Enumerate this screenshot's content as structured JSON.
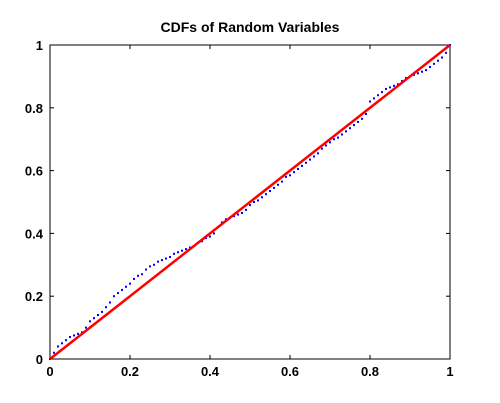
{
  "chart_data": {
    "type": "line",
    "title": "CDFs of Random Variables",
    "xlabel": "",
    "ylabel": "",
    "xlim": [
      0,
      1
    ],
    "ylim": [
      0,
      1
    ],
    "xticks": [
      "0",
      "0.2",
      "0.4",
      "0.6",
      "0.8",
      "1"
    ],
    "yticks": [
      "0",
      "0.2",
      "0.4",
      "0.6",
      "0.8",
      "1"
    ],
    "grid": false,
    "legend": "none",
    "series": [
      {
        "style": "dotted",
        "color": "#0000ff",
        "x": [
          0.0,
          0.01,
          0.02,
          0.03,
          0.04,
          0.05,
          0.06,
          0.07,
          0.08,
          0.09,
          0.1,
          0.11,
          0.12,
          0.13,
          0.14,
          0.15,
          0.16,
          0.17,
          0.18,
          0.19,
          0.2,
          0.21,
          0.22,
          0.23,
          0.24,
          0.25,
          0.26,
          0.27,
          0.28,
          0.29,
          0.3,
          0.31,
          0.32,
          0.33,
          0.34,
          0.35,
          0.36,
          0.37,
          0.38,
          0.39,
          0.4,
          0.41,
          0.42,
          0.43,
          0.44,
          0.45,
          0.46,
          0.47,
          0.48,
          0.49,
          0.5,
          0.51,
          0.52,
          0.53,
          0.54,
          0.55,
          0.56,
          0.57,
          0.58,
          0.59,
          0.6,
          0.61,
          0.62,
          0.63,
          0.64,
          0.65,
          0.66,
          0.67,
          0.68,
          0.69,
          0.7,
          0.71,
          0.72,
          0.73,
          0.74,
          0.75,
          0.76,
          0.77,
          0.78,
          0.79,
          0.8,
          0.81,
          0.82,
          0.83,
          0.84,
          0.85,
          0.86,
          0.87,
          0.88,
          0.89,
          0.9,
          0.91,
          0.92,
          0.93,
          0.94,
          0.95,
          0.96,
          0.97,
          0.98,
          0.99,
          1.0
        ],
        "y": [
          0.0,
          0.02,
          0.04,
          0.05,
          0.06,
          0.07,
          0.075,
          0.08,
          0.085,
          0.1,
          0.12,
          0.13,
          0.14,
          0.15,
          0.165,
          0.18,
          0.2,
          0.21,
          0.22,
          0.23,
          0.24,
          0.255,
          0.265,
          0.27,
          0.285,
          0.295,
          0.3,
          0.31,
          0.315,
          0.32,
          0.325,
          0.335,
          0.34,
          0.345,
          0.35,
          0.355,
          0.36,
          0.37,
          0.375,
          0.385,
          0.39,
          0.4,
          0.42,
          0.435,
          0.445,
          0.45,
          0.455,
          0.46,
          0.465,
          0.475,
          0.49,
          0.5,
          0.505,
          0.515,
          0.525,
          0.535,
          0.545,
          0.555,
          0.565,
          0.58,
          0.585,
          0.595,
          0.605,
          0.615,
          0.625,
          0.635,
          0.645,
          0.655,
          0.67,
          0.68,
          0.69,
          0.7,
          0.705,
          0.715,
          0.725,
          0.735,
          0.745,
          0.755,
          0.765,
          0.78,
          0.82,
          0.83,
          0.84,
          0.85,
          0.86,
          0.865,
          0.87,
          0.875,
          0.885,
          0.895,
          0.9,
          0.905,
          0.91,
          0.915,
          0.92,
          0.93,
          0.94,
          0.95,
          0.96,
          0.975,
          1.0
        ]
      },
      {
        "style": "solid",
        "color": "#ff0000",
        "x": [
          0,
          1
        ],
        "y": [
          0,
          1
        ]
      }
    ]
  }
}
